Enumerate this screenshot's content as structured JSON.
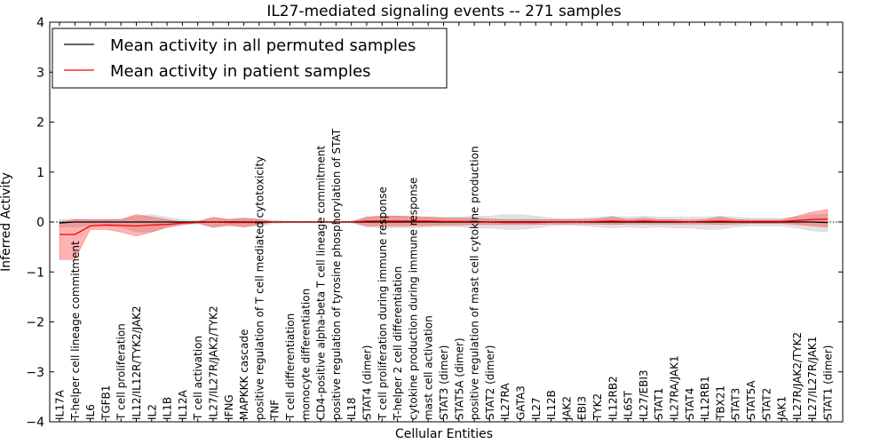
{
  "chart_data": {
    "type": "line",
    "title": "IL27-mediated signaling events -- 271 samples",
    "xlabel": "Cellular Entities",
    "ylabel": "Inferred Activity",
    "ylim": [
      -4,
      4
    ],
    "yticks": [
      "−4",
      "−3",
      "−2",
      "−1",
      "0",
      "1",
      "2",
      "3",
      "4"
    ],
    "ytick_values": [
      -4,
      -3,
      -2,
      -1,
      0,
      1,
      2,
      3,
      4
    ],
    "legend": {
      "position": "top-left",
      "entries": [
        {
          "label": "Mean activity in all permuted samples",
          "color": "#000000"
        },
        {
          "label": "Mean activity in patient samples",
          "color": "#ff0000"
        }
      ]
    },
    "categories": [
      "IL17A",
      "T-helper cell lineage commitment",
      "IL6",
      "TGFB1",
      "T cell proliferation",
      "IL12/IL12R/TYK2/JAK2",
      "IL2",
      "IL1B",
      "IL12A",
      "T cell activation",
      "IL27/IL27R/JAK2/TYK2",
      "IFNG",
      "MAPKKK cascade",
      "positive regulation of T cell mediated cytotoxicity",
      "TNF",
      "T cell differentiation",
      "monocyte differentiation",
      "CD4-positive alpha-beta T cell lineage commitment",
      "positive regulation of tyrosine phosphorylation of STAT",
      "IL18",
      "STAT4 (dimer)",
      "T cell proliferation during immune response",
      "T-helper 2 cell differentiation",
      "cytokine production during immune response",
      "mast cell activation",
      "STAT3 (dimer)",
      "STAT5A (dimer)",
      "positive regulation of mast cell cytokine production",
      "STAT2 (dimer)",
      "IL27RA",
      "GATA3",
      "IL27",
      "IL12B",
      "JAK2",
      "EBI3",
      "TYK2",
      "IL12RB2",
      "IL6ST",
      "IL27/EBI3",
      "STAT1",
      "IL27RA/JAK1",
      "STAT4",
      "IL12RB1",
      "TBX21",
      "STAT3",
      "STAT5A",
      "STAT2",
      "JAK1",
      "IL27R/JAK2/TYK2",
      "IL27/IL27R/JAK1",
      "STAT1 (dimer)"
    ],
    "series": [
      {
        "name": "Mean activity in patient samples",
        "color": "#ff0000",
        "values": [
          -0.25,
          -0.25,
          -0.08,
          -0.06,
          -0.07,
          -0.08,
          -0.06,
          -0.05,
          -0.02,
          -0.01,
          0.0,
          -0.01,
          -0.01,
          -0.01,
          0.0,
          0.0,
          0.0,
          0.0,
          0.0,
          0.0,
          0.02,
          0.02,
          0.02,
          0.02,
          0.02,
          0.01,
          0.01,
          0.01,
          0.0,
          -0.01,
          -0.01,
          -0.01,
          0.0,
          0.0,
          0.0,
          0.01,
          0.02,
          0.01,
          0.02,
          0.01,
          0.01,
          0.0,
          0.01,
          0.02,
          0.01,
          0.01,
          0.01,
          0.01,
          0.03,
          0.05,
          0.06
        ],
        "upper": [
          0.0,
          0.05,
          0.05,
          0.05,
          0.05,
          0.15,
          0.1,
          0.05,
          0.0,
          0.0,
          0.1,
          0.05,
          0.08,
          0.05,
          0.0,
          0.0,
          0.0,
          0.0,
          0.0,
          0.0,
          0.1,
          0.12,
          0.12,
          0.1,
          0.1,
          0.08,
          0.08,
          0.08,
          0.06,
          0.05,
          0.05,
          0.05,
          0.05,
          0.05,
          0.05,
          0.06,
          0.1,
          0.05,
          0.08,
          0.05,
          0.05,
          0.04,
          0.05,
          0.1,
          0.05,
          0.04,
          0.04,
          0.04,
          0.12,
          0.2,
          0.25
        ],
        "lower": [
          -0.75,
          -0.75,
          -0.15,
          -0.15,
          -0.2,
          -0.28,
          -0.2,
          -0.1,
          -0.05,
          -0.02,
          -0.1,
          -0.06,
          -0.1,
          -0.05,
          0.0,
          0.0,
          0.0,
          0.0,
          0.0,
          0.0,
          -0.08,
          -0.08,
          -0.08,
          -0.08,
          -0.07,
          -0.06,
          -0.06,
          -0.05,
          -0.05,
          -0.05,
          -0.05,
          -0.05,
          -0.04,
          -0.04,
          -0.04,
          -0.04,
          -0.05,
          -0.04,
          -0.04,
          -0.04,
          -0.04,
          -0.04,
          -0.04,
          -0.05,
          -0.04,
          -0.03,
          -0.03,
          -0.03,
          -0.05,
          -0.08,
          -0.1
        ]
      },
      {
        "name": "Mean activity in all permuted samples",
        "color": "#000000",
        "values": [
          -0.02,
          0.0,
          0.0,
          0.0,
          0.0,
          0.0,
          0.0,
          0.0,
          0.0,
          0.0,
          0.0,
          0.0,
          0.0,
          0.0,
          0.0,
          0.0,
          0.0,
          0.0,
          0.0,
          0.0,
          0.0,
          0.0,
          0.0,
          0.0,
          0.0,
          0.0,
          0.0,
          0.0,
          0.0,
          0.0,
          0.0,
          0.0,
          0.0,
          0.0,
          0.0,
          0.0,
          0.0,
          0.0,
          0.0,
          0.0,
          0.0,
          0.0,
          0.0,
          0.0,
          0.0,
          0.0,
          0.0,
          0.0,
          0.0,
          0.0,
          -0.01
        ],
        "upper": [
          0.05,
          0.06,
          0.05,
          0.05,
          0.06,
          0.12,
          0.15,
          0.1,
          0.05,
          0.03,
          0.08,
          0.06,
          0.08,
          0.06,
          0.03,
          0.02,
          0.02,
          0.02,
          0.02,
          0.02,
          0.1,
          0.12,
          0.12,
          0.12,
          0.1,
          0.1,
          0.1,
          0.12,
          0.12,
          0.15,
          0.15,
          0.12,
          0.08,
          0.06,
          0.08,
          0.1,
          0.12,
          0.1,
          0.12,
          0.1,
          0.1,
          0.1,
          0.1,
          0.12,
          0.1,
          0.08,
          0.08,
          0.08,
          0.1,
          0.15,
          0.15
        ],
        "lower": [
          -0.1,
          -0.1,
          -0.08,
          -0.08,
          -0.1,
          -0.2,
          -0.2,
          -0.12,
          -0.06,
          -0.04,
          -0.12,
          -0.08,
          -0.1,
          -0.08,
          -0.03,
          -0.02,
          -0.02,
          -0.02,
          -0.02,
          -0.02,
          -0.1,
          -0.12,
          -0.12,
          -0.12,
          -0.1,
          -0.1,
          -0.1,
          -0.12,
          -0.12,
          -0.15,
          -0.15,
          -0.12,
          -0.08,
          -0.06,
          -0.08,
          -0.1,
          -0.12,
          -0.1,
          -0.12,
          -0.1,
          -0.12,
          -0.12,
          -0.15,
          -0.15,
          -0.1,
          -0.08,
          -0.08,
          -0.08,
          -0.12,
          -0.18,
          -0.2
        ]
      }
    ]
  }
}
